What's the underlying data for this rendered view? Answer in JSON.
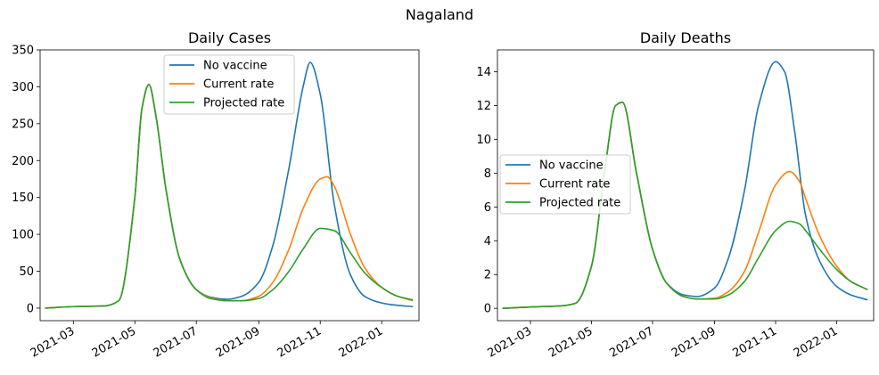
{
  "figure": {
    "suptitle": "Nagaland"
  },
  "colors": {
    "no_vaccine": "#1f77b4",
    "current_rate": "#ff7f0e",
    "projected_rate": "#2ca02c"
  },
  "chart_data": [
    {
      "type": "line",
      "title": "Daily Cases",
      "xlabel": "",
      "ylabel": "",
      "x_type": "date",
      "xlim": [
        "2021-01-27",
        "2022-02-07"
      ],
      "ylim": [
        -17,
        350
      ],
      "yticks": [
        0,
        50,
        100,
        150,
        200,
        250,
        300,
        350
      ],
      "xticks": [
        "2021-03",
        "2021-05",
        "2021-07",
        "2021-09",
        "2021-11",
        "2022-01"
      ],
      "legend": "upper center",
      "grid": false,
      "series": [
        {
          "name": "No vaccine",
          "color": "#1f77b4",
          "x": [
            "2021-02-01",
            "2021-03-01",
            "2021-04-01",
            "2021-04-15",
            "2021-05-01",
            "2021-05-08",
            "2021-05-15",
            "2021-05-22",
            "2021-06-01",
            "2021-06-15",
            "2021-07-01",
            "2021-07-15",
            "2021-08-01",
            "2021-08-15",
            "2021-09-01",
            "2021-09-15",
            "2021-10-01",
            "2021-10-15",
            "2021-10-22",
            "2021-11-01",
            "2021-11-15",
            "2021-12-01",
            "2021-12-15",
            "2022-01-01",
            "2022-01-15",
            "2022-02-01"
          ],
          "y": [
            0,
            2,
            3,
            10,
            150,
            270,
            303,
            260,
            160,
            65,
            25,
            15,
            12,
            16,
            35,
            85,
            190,
            300,
            333,
            290,
            140,
            45,
            16,
            7,
            4,
            2
          ]
        },
        {
          "name": "Current rate",
          "color": "#ff7f0e",
          "x": [
            "2021-02-01",
            "2021-03-01",
            "2021-04-01",
            "2021-04-15",
            "2021-05-01",
            "2021-05-08",
            "2021-05-15",
            "2021-05-22",
            "2021-06-01",
            "2021-06-15",
            "2021-07-01",
            "2021-07-15",
            "2021-08-01",
            "2021-08-15",
            "2021-09-01",
            "2021-09-15",
            "2021-10-01",
            "2021-10-15",
            "2021-11-01",
            "2021-11-08",
            "2021-11-15",
            "2021-12-01",
            "2021-12-15",
            "2022-01-01",
            "2022-01-15",
            "2022-02-01"
          ],
          "y": [
            0,
            2,
            3,
            10,
            150,
            270,
            303,
            260,
            160,
            65,
            25,
            14,
            10,
            10,
            16,
            35,
            80,
            135,
            175,
            178,
            165,
            100,
            55,
            28,
            17,
            10
          ]
        },
        {
          "name": "Projected rate",
          "color": "#2ca02c",
          "x": [
            "2021-02-01",
            "2021-03-01",
            "2021-04-01",
            "2021-04-15",
            "2021-05-01",
            "2021-05-08",
            "2021-05-15",
            "2021-05-22",
            "2021-06-01",
            "2021-06-15",
            "2021-07-01",
            "2021-07-15",
            "2021-08-01",
            "2021-08-15",
            "2021-09-01",
            "2021-09-15",
            "2021-10-01",
            "2021-10-15",
            "2021-11-01",
            "2021-11-15",
            "2021-12-01",
            "2021-12-15",
            "2022-01-01",
            "2022-01-15",
            "2022-02-01"
          ],
          "y": [
            0,
            2,
            3,
            10,
            150,
            270,
            303,
            260,
            160,
            65,
            25,
            13,
            10,
            10,
            13,
            25,
            50,
            80,
            108,
            105,
            75,
            48,
            28,
            17,
            11
          ]
        }
      ]
    },
    {
      "type": "line",
      "title": "Daily Deaths",
      "xlabel": "",
      "ylabel": "",
      "x_type": "date",
      "xlim": [
        "2021-01-27",
        "2022-02-07"
      ],
      "ylim": [
        -0.73,
        15.3
      ],
      "yticks": [
        0,
        2,
        4,
        6,
        8,
        10,
        12,
        14
      ],
      "xticks": [
        "2021-03",
        "2021-05",
        "2021-07",
        "2021-09",
        "2021-11",
        "2022-01"
      ],
      "legend": "center left",
      "grid": false,
      "series": [
        {
          "name": "No vaccine",
          "color": "#1f77b4",
          "x": [
            "2021-02-01",
            "2021-03-01",
            "2021-04-01",
            "2021-04-15",
            "2021-05-01",
            "2021-05-15",
            "2021-05-25",
            "2021-06-01",
            "2021-06-15",
            "2021-07-01",
            "2021-07-15",
            "2021-08-01",
            "2021-08-15",
            "2021-09-01",
            "2021-09-15",
            "2021-10-01",
            "2021-10-15",
            "2021-11-01",
            "2021-11-10",
            "2021-11-20",
            "2021-12-01",
            "2021-12-15",
            "2022-01-01",
            "2022-01-15",
            "2022-02-01"
          ],
          "y": [
            0,
            0.08,
            0.15,
            0.3,
            2.5,
            8.5,
            12,
            12.2,
            8,
            3.5,
            1.5,
            0.8,
            0.7,
            1.2,
            3,
            7,
            12,
            14.6,
            14,
            10.5,
            5.5,
            2.8,
            1.3,
            0.8,
            0.5
          ]
        },
        {
          "name": "Current rate",
          "color": "#ff7f0e",
          "x": [
            "2021-02-01",
            "2021-03-01",
            "2021-04-01",
            "2021-04-15",
            "2021-05-01",
            "2021-05-15",
            "2021-05-25",
            "2021-06-01",
            "2021-06-15",
            "2021-07-01",
            "2021-07-15",
            "2021-08-01",
            "2021-08-15",
            "2021-09-01",
            "2021-09-15",
            "2021-10-01",
            "2021-10-15",
            "2021-11-01",
            "2021-11-15",
            "2021-11-25",
            "2021-12-01",
            "2021-12-15",
            "2022-01-01",
            "2022-01-15",
            "2022-02-01"
          ],
          "y": [
            0,
            0.08,
            0.15,
            0.3,
            2.5,
            8.5,
            12,
            12.2,
            8,
            3.5,
            1.5,
            0.7,
            0.55,
            0.6,
            1,
            2.2,
            4.5,
            7.3,
            8.1,
            7.5,
            6.5,
            4.3,
            2.5,
            1.6,
            1.1
          ]
        },
        {
          "name": "Projected rate",
          "color": "#2ca02c",
          "x": [
            "2021-02-01",
            "2021-03-01",
            "2021-04-01",
            "2021-04-15",
            "2021-05-01",
            "2021-05-15",
            "2021-05-25",
            "2021-06-01",
            "2021-06-15",
            "2021-07-01",
            "2021-07-15",
            "2021-08-01",
            "2021-08-15",
            "2021-09-01",
            "2021-09-15",
            "2021-10-01",
            "2021-10-15",
            "2021-11-01",
            "2021-11-15",
            "2021-11-25",
            "2021-12-01",
            "2021-12-15",
            "2022-01-01",
            "2022-01-15",
            "2022-02-01"
          ],
          "y": [
            0,
            0.08,
            0.15,
            0.3,
            2.5,
            8.5,
            12,
            12.2,
            8,
            3.5,
            1.5,
            0.7,
            0.55,
            0.55,
            0.8,
            1.6,
            3,
            4.6,
            5.15,
            5,
            4.6,
            3.5,
            2.3,
            1.6,
            1.1
          ]
        }
      ]
    }
  ]
}
